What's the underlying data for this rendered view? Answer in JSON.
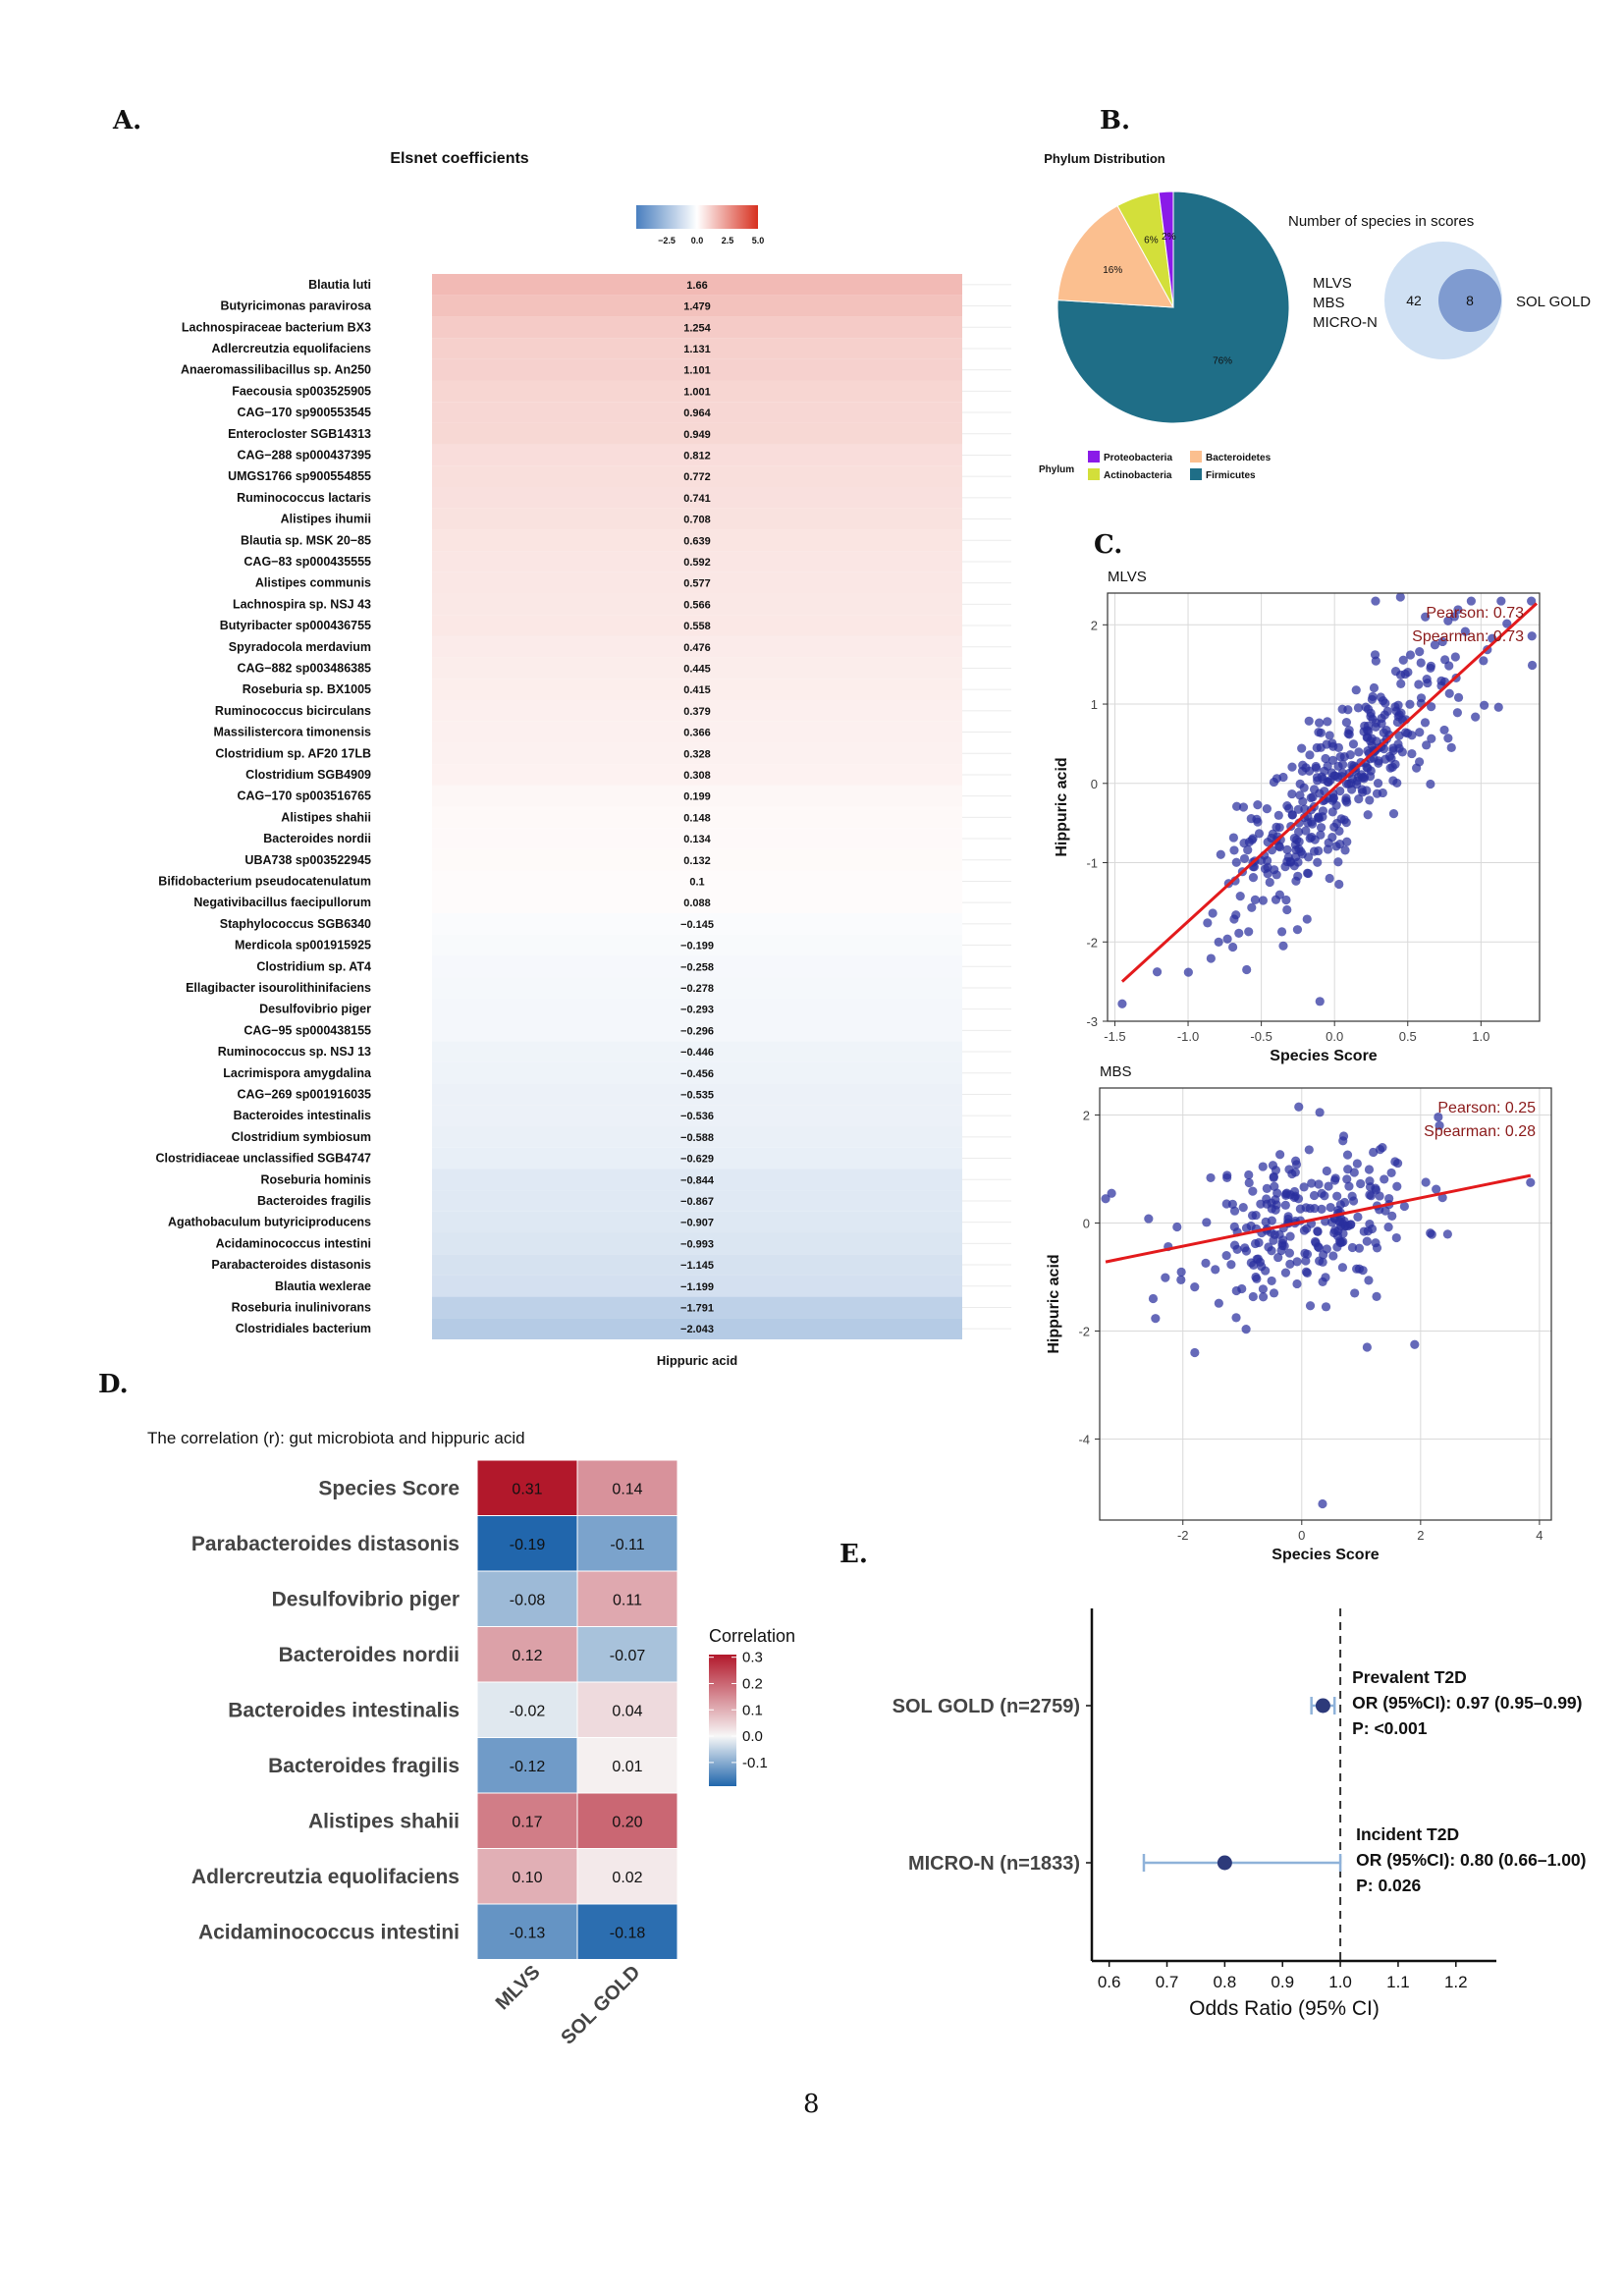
{
  "panels": {
    "a": "A.",
    "b": "B.",
    "c": "C.",
    "d": "D.",
    "e": "E."
  },
  "page_number": "8",
  "chart_data": [
    {
      "id": "A",
      "type": "heatmap",
      "title": "Elsnet coefficients",
      "xlabel": "Hippuric acid",
      "legend": {
        "ticks": [
          "−2.5",
          "0.0",
          "2.5",
          "5.0"
        ],
        "range": [
          -5,
          5
        ],
        "low_color": "#4a7fbf",
        "mid_color": "#ffffff",
        "high_color": "#d7301f"
      },
      "rows": [
        {
          "label": "Blautia luti",
          "value": 1.66,
          "text": "1.66"
        },
        {
          "label": "Butyricimonas paravirosa",
          "value": 1.479,
          "text": "1.479"
        },
        {
          "label": "Lachnospiraceae bacterium BX3",
          "value": 1.254,
          "text": "1.254"
        },
        {
          "label": "Adlercreutzia equolifaciens",
          "value": 1.131,
          "text": "1.131"
        },
        {
          "label": "Anaeromassilibacillus sp. An250",
          "value": 1.101,
          "text": "1.101"
        },
        {
          "label": "Faecousia sp003525905",
          "value": 1.001,
          "text": "1.001"
        },
        {
          "label": "CAG−170 sp900553545",
          "value": 0.964,
          "text": "0.964"
        },
        {
          "label": "Enterocloster SGB14313",
          "value": 0.949,
          "text": "0.949"
        },
        {
          "label": "CAG−288 sp000437395",
          "value": 0.812,
          "text": "0.812"
        },
        {
          "label": "UMGS1766 sp900554855",
          "value": 0.772,
          "text": "0.772"
        },
        {
          "label": "Ruminococcus lactaris",
          "value": 0.741,
          "text": "0.741"
        },
        {
          "label": "Alistipes ihumii",
          "value": 0.708,
          "text": "0.708"
        },
        {
          "label": "Blautia sp. MSK 20−85",
          "value": 0.639,
          "text": "0.639"
        },
        {
          "label": "CAG−83 sp000435555",
          "value": 0.592,
          "text": "0.592"
        },
        {
          "label": "Alistipes communis",
          "value": 0.577,
          "text": "0.577"
        },
        {
          "label": "Lachnospira sp. NSJ 43",
          "value": 0.566,
          "text": "0.566"
        },
        {
          "label": "Butyribacter sp000436755",
          "value": 0.558,
          "text": "0.558"
        },
        {
          "label": "Spyradocola merdavium",
          "value": 0.476,
          "text": "0.476"
        },
        {
          "label": "CAG−882 sp003486385",
          "value": 0.445,
          "text": "0.445"
        },
        {
          "label": "Roseburia sp. BX1005",
          "value": 0.415,
          "text": "0.415"
        },
        {
          "label": "Ruminococcus bicirculans",
          "value": 0.379,
          "text": "0.379"
        },
        {
          "label": "Massilistercora timonensis",
          "value": 0.366,
          "text": "0.366"
        },
        {
          "label": "Clostridium sp. AF20 17LB",
          "value": 0.328,
          "text": "0.328"
        },
        {
          "label": "Clostridium SGB4909",
          "value": 0.308,
          "text": "0.308"
        },
        {
          "label": "CAG−170 sp003516765",
          "value": 0.199,
          "text": "0.199"
        },
        {
          "label": "Alistipes shahii",
          "value": 0.148,
          "text": "0.148"
        },
        {
          "label": "Bacteroides nordii",
          "value": 0.134,
          "text": "0.134"
        },
        {
          "label": "UBA738 sp003522945",
          "value": 0.132,
          "text": "0.132"
        },
        {
          "label": "Bifidobacterium pseudocatenulatum",
          "value": 0.1,
          "text": "0.1"
        },
        {
          "label": "Negativibacillus faecipullorum",
          "value": 0.088,
          "text": "0.088"
        },
        {
          "label": "Staphylococcus SGB6340",
          "value": -0.145,
          "text": "−0.145"
        },
        {
          "label": "Merdicola sp001915925",
          "value": -0.199,
          "text": "−0.199"
        },
        {
          "label": "Clostridium sp. AT4",
          "value": -0.258,
          "text": "−0.258"
        },
        {
          "label": "Ellagibacter isourolithinifaciens",
          "value": -0.278,
          "text": "−0.278"
        },
        {
          "label": "Desulfovibrio piger",
          "value": -0.293,
          "text": "−0.293"
        },
        {
          "label": "CAG−95 sp000438155",
          "value": -0.296,
          "text": "−0.296"
        },
        {
          "label": "Ruminococcus sp. NSJ 13",
          "value": -0.446,
          "text": "−0.446"
        },
        {
          "label": "Lacrimispora amygdalina",
          "value": -0.456,
          "text": "−0.456"
        },
        {
          "label": "CAG−269 sp001916035",
          "value": -0.535,
          "text": "−0.535"
        },
        {
          "label": "Bacteroides intestinalis",
          "value": -0.536,
          "text": "−0.536"
        },
        {
          "label": "Clostridium symbiosum",
          "value": -0.588,
          "text": "−0.588"
        },
        {
          "label": "Clostridiaceae unclassified SGB4747",
          "value": -0.629,
          "text": "−0.629"
        },
        {
          "label": "Roseburia hominis",
          "value": -0.844,
          "text": "−0.844"
        },
        {
          "label": "Bacteroides fragilis",
          "value": -0.867,
          "text": "−0.867"
        },
        {
          "label": "Agathobaculum butyriciproducens",
          "value": -0.907,
          "text": "−0.907"
        },
        {
          "label": "Acidaminococcus intestini",
          "value": -0.993,
          "text": "−0.993"
        },
        {
          "label": "Parabacteroides distasonis",
          "value": -1.145,
          "text": "−1.145"
        },
        {
          "label": "Blautia wexlerae",
          "value": -1.199,
          "text": "−1.199"
        },
        {
          "label": "Roseburia inulinivorans",
          "value": -1.791,
          "text": "−1.791"
        },
        {
          "label": "Clostridiales bacterium",
          "value": -2.043,
          "text": "−2.043"
        }
      ]
    },
    {
      "id": "B-pie",
      "type": "pie",
      "title": "Phylum Distribution",
      "legend_title": "Phylum",
      "slices": [
        {
          "label": "Firmicutes",
          "value": 76,
          "text": "76%",
          "color": "#1f6e87"
        },
        {
          "label": "Bacteroidetes",
          "value": 16,
          "text": "16%",
          "color": "#fbbf8f"
        },
        {
          "label": "Actinobacteria",
          "value": 6,
          "text": "6%",
          "color": "#d3df3a"
        },
        {
          "label": "Proteobacteria",
          "value": 2,
          "text": "2%",
          "color": "#8a1be8"
        }
      ],
      "legend_order": [
        "Proteobacteria",
        "Bacteroidetes",
        "Actinobacteria",
        "Firmicutes"
      ]
    },
    {
      "id": "B-venn",
      "type": "venn",
      "title": "Number of species in scores",
      "left_label_lines": [
        "MLVS",
        "MBS",
        "MICRO-N"
      ],
      "right_label": "SOL GOLD",
      "outer_count": "42",
      "inner_count": "8"
    },
    {
      "id": "C-MLVS",
      "type": "scatter",
      "title": "MLVS",
      "xlabel": "Species Score",
      "ylabel": "Hippuric acid",
      "xlim": [
        -1.55,
        1.4
      ],
      "ylim": [
        -3.0,
        2.4
      ],
      "xticks": [
        -1.5,
        -1.0,
        -0.5,
        0.0,
        0.5,
        1.0
      ],
      "xtick_labels": [
        "-1.5",
        "-1.0",
        "-0.5",
        "0.0",
        "0.5",
        "1.0"
      ],
      "yticks": [
        -3,
        -2,
        -1,
        0,
        1,
        2
      ],
      "ytick_labels": [
        "-3",
        "-2",
        "-1",
        "0",
        "1",
        "2"
      ],
      "annotation": {
        "pearson": "Pearson:  0.73",
        "spearman": "Spearman:  0.73"
      },
      "fit_line": {
        "x": [
          -1.45,
          1.38
        ],
        "y": [
          -2.5,
          2.27
        ]
      },
      "n_points": 380,
      "noise_sd": 0.48,
      "x_mean": 0.05,
      "x_sd": 0.42,
      "seed": 7,
      "extra_points": [
        [
          -1.45,
          -2.78
        ],
        [
          1.12,
          0.96
        ],
        [
          0.28,
          2.3
        ],
        [
          0.45,
          2.35
        ],
        [
          0.62,
          2.1
        ],
        [
          -0.1,
          -2.75
        ],
        [
          -0.35,
          -2.05
        ],
        [
          -0.6,
          -2.35
        ]
      ]
    },
    {
      "id": "C-MBS",
      "type": "scatter",
      "title": "MBS",
      "xlabel": "Species Score",
      "ylabel": "Hippuric acid",
      "xlim": [
        -3.4,
        4.2
      ],
      "ylim": [
        -5.5,
        2.5
      ],
      "xticks": [
        -2,
        0,
        2,
        4
      ],
      "xtick_labels": [
        "-2",
        "0",
        "2",
        "4"
      ],
      "yticks": [
        -4,
        -2,
        0,
        2
      ],
      "ytick_labels": [
        "-4",
        "-2",
        "0",
        "2"
      ],
      "annotation": {
        "pearson": "Pearson:  0.25",
        "spearman": "Spearman:  0.28"
      },
      "fit_line": {
        "x": [
          -3.3,
          3.85
        ],
        "y": [
          -0.72,
          0.88
        ]
      },
      "n_points": 250,
      "noise_sd": 0.72,
      "x_mean": 0.1,
      "x_sd": 0.95,
      "seed": 11,
      "extra_points": [
        [
          0.35,
          -5.2
        ],
        [
          -3.2,
          0.55
        ],
        [
          3.85,
          0.75
        ],
        [
          -0.05,
          2.15
        ],
        [
          -1.8,
          -2.4
        ],
        [
          1.1,
          -2.3
        ],
        [
          1.9,
          -2.25
        ],
        [
          -2.5,
          -1.4
        ],
        [
          -3.3,
          0.45
        ]
      ]
    },
    {
      "id": "D",
      "type": "heatmap",
      "title": "The correlation (r): gut microbiota and hippuric acid",
      "columns": [
        "MLVS",
        "SOL GOLD"
      ],
      "rows": [
        "Species Score",
        "Parabacteroides distasonis",
        "Desulfovibrio piger",
        "Bacteroides nordii",
        "Bacteroides intestinalis",
        "Bacteroides fragilis",
        "Alistipes shahii",
        "Adlercreutzia equolifaciens",
        "Acidaminococcus intestini"
      ],
      "values": [
        [
          0.31,
          0.14
        ],
        [
          -0.19,
          -0.11
        ],
        [
          -0.08,
          0.11
        ],
        [
          0.12,
          -0.07
        ],
        [
          -0.02,
          0.04
        ],
        [
          -0.12,
          0.01
        ],
        [
          0.17,
          0.2
        ],
        [
          0.1,
          0.02
        ],
        [
          -0.13,
          -0.18
        ]
      ],
      "value_text": [
        [
          "0.31",
          "0.14"
        ],
        [
          "-0.19",
          "-0.11"
        ],
        [
          "-0.08",
          "0.11"
        ],
        [
          "0.12",
          "-0.07"
        ],
        [
          "-0.02",
          "0.04"
        ],
        [
          "-0.12",
          "0.01"
        ],
        [
          "0.17",
          "0.20"
        ],
        [
          "0.10",
          "0.02"
        ],
        [
          "-0.13",
          "-0.18"
        ]
      ],
      "legend_title": "Correlation",
      "legend_ticks": [
        0.3,
        0.2,
        0.1,
        0.0,
        -0.1
      ],
      "legend_tick_labels": [
        "0.3",
        "0.2",
        "0.1",
        "0.0",
        "-0.1"
      ],
      "color_range": [
        -0.19,
        0.31
      ]
    },
    {
      "id": "E",
      "type": "forest",
      "xlabel": "Odds Ratio (95% CI)",
      "xlim": [
        0.57,
        1.27
      ],
      "xticks": [
        0.6,
        0.7,
        0.8,
        0.9,
        1.0,
        1.1,
        1.2
      ],
      "xtick_labels": [
        "0.6",
        "0.7",
        "0.8",
        "0.9",
        "1.0",
        "1.1",
        "1.2"
      ],
      "reference": 1.0,
      "rows": [
        {
          "label": "SOL GOLD (n=2759)",
          "or": 0.97,
          "lo": 0.95,
          "hi": 0.99,
          "lines": [
            "Prevalent T2D",
            "OR (95%CI): 0.97 (0.95–0.99)",
            "P: <0.001"
          ]
        },
        {
          "label": "MICRO-N (n=1833)",
          "or": 0.8,
          "lo": 0.66,
          "hi": 1.0,
          "lines": [
            "Incident T2D",
            "OR (95%CI): 0.80 (0.66–1.00)",
            "P: 0.026"
          ]
        }
      ]
    }
  ]
}
